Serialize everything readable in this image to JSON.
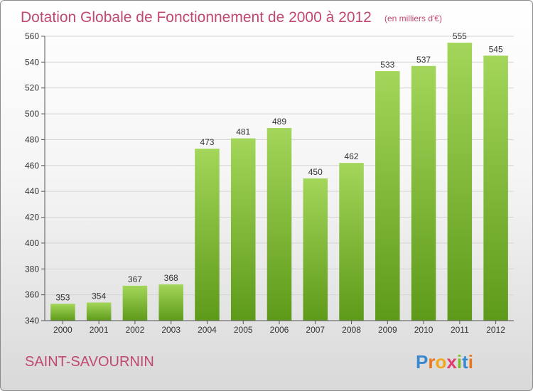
{
  "chart_data": {
    "type": "bar",
    "title": "Dotation Globale de Fonctionnement de 2000 à 2012",
    "subtitle": "(en milliers d'€)",
    "categories": [
      "2000",
      "2001",
      "2002",
      "2003",
      "2004",
      "2005",
      "2006",
      "2007",
      "2008",
      "2009",
      "2010",
      "2011",
      "2012"
    ],
    "values": [
      353,
      354,
      367,
      368,
      473,
      481,
      489,
      450,
      462,
      533,
      537,
      555,
      545
    ],
    "ylim": [
      340,
      560
    ],
    "yticks": [
      340,
      360,
      380,
      400,
      420,
      440,
      460,
      480,
      500,
      520,
      540,
      560
    ],
    "grid": true,
    "bar_color_top": "#a3d65a",
    "bar_color_bottom": "#5e9a1a"
  },
  "commune": "SAINT-SAVOURNIN",
  "logo": {
    "letters": [
      "P",
      "r",
      "o",
      "x",
      "i",
      "t",
      "i"
    ],
    "colors": [
      "#3a88d0",
      "#e8761f",
      "#f2a81d",
      "#e23b6d",
      "#7bbd2a",
      "#3a88d0",
      "#e8761f"
    ]
  }
}
